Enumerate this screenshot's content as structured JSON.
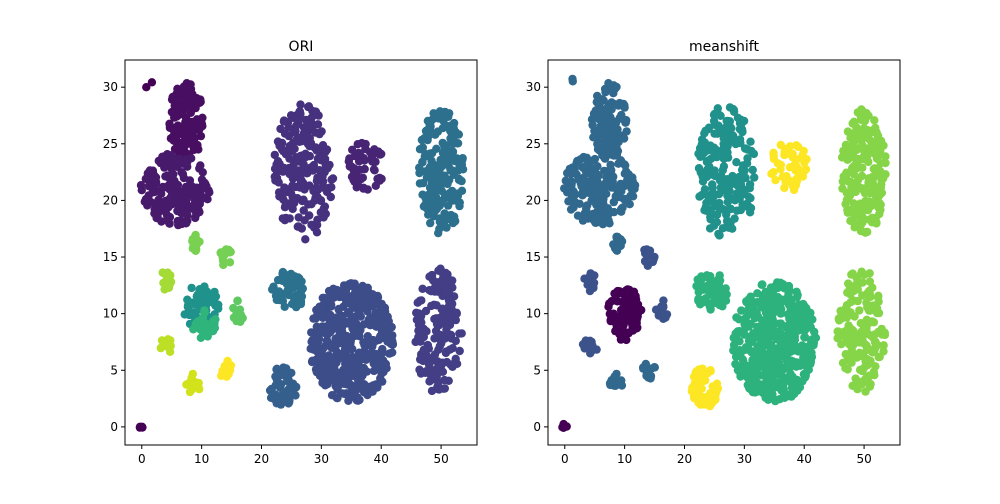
{
  "chart_data": [
    {
      "type": "scatter",
      "title": "ORI",
      "xlabel": "",
      "ylabel": "",
      "xlim": [
        -2.8,
        56
      ],
      "ylim": [
        -1.6,
        32.4
      ],
      "xticks": [
        0,
        10,
        20,
        30,
        40,
        50
      ],
      "yticks": [
        0,
        5,
        10,
        15,
        20,
        25,
        30
      ],
      "grid": false,
      "legend": "none",
      "clusters": [
        {
          "color": "#440154",
          "cx": 0,
          "cy": 0,
          "rx": 0.4,
          "ry": 0.3,
          "n": 4
        },
        {
          "color": "#440154",
          "cx": 1.2,
          "cy": 30.3,
          "rx": 0.6,
          "ry": 0.6,
          "n": 2
        },
        {
          "color": "#470e61",
          "cx": 7.5,
          "cy": 27,
          "rx": 3,
          "ry": 3.5,
          "n": 120
        },
        {
          "color": "#481a6c",
          "cx": 5.8,
          "cy": 21,
          "rx": 6,
          "ry": 3.2,
          "n": 180
        },
        {
          "color": "#482475",
          "cx": 37.5,
          "cy": 23,
          "rx": 3.2,
          "ry": 2.2,
          "n": 50
        },
        {
          "color": "#46317e",
          "cx": 27,
          "cy": 22.5,
          "rx": 5,
          "ry": 6,
          "n": 200
        },
        {
          "color": "#433e85",
          "cx": 49.5,
          "cy": 8.5,
          "rx": 4,
          "ry": 5.5,
          "n": 160
        },
        {
          "color": "#3d4d8a",
          "cx": 35,
          "cy": 7.5,
          "rx": 7,
          "ry": 5.3,
          "n": 450
        },
        {
          "color": "#355f8d",
          "cx": 23.5,
          "cy": 3.5,
          "rx": 2.4,
          "ry": 1.8,
          "n": 55
        },
        {
          "color": "#2c728e",
          "cx": 24.5,
          "cy": 12,
          "rx": 2.8,
          "ry": 1.8,
          "n": 55
        },
        {
          "color": "#2d708e",
          "cx": 50,
          "cy": 22.5,
          "rx": 3.8,
          "ry": 5.6,
          "n": 200
        },
        {
          "color": "#20928c",
          "cx": 10,
          "cy": 10.5,
          "rx": 3,
          "ry": 2.2,
          "n": 70
        },
        {
          "color": "#2fb47c",
          "cx": 10.5,
          "cy": 9,
          "rx": 2,
          "ry": 1.3,
          "n": 30
        },
        {
          "color": "#5ec962",
          "cx": 16.2,
          "cy": 10.2,
          "rx": 1,
          "ry": 1,
          "n": 14
        },
        {
          "color": "#7ad151",
          "cx": 8.8,
          "cy": 16.4,
          "rx": 1,
          "ry": 0.9,
          "n": 14
        },
        {
          "color": "#75d054",
          "cx": 14,
          "cy": 15,
          "rx": 1,
          "ry": 0.9,
          "n": 14
        },
        {
          "color": "#a5db36",
          "cx": 4.2,
          "cy": 13,
          "rx": 1,
          "ry": 1,
          "n": 12
        },
        {
          "color": "#bddf26",
          "cx": 4.2,
          "cy": 7.1,
          "rx": 1.2,
          "ry": 0.8,
          "n": 14
        },
        {
          "color": "#d2e21b",
          "cx": 8.6,
          "cy": 3.8,
          "rx": 1.2,
          "ry": 0.9,
          "n": 14
        },
        {
          "color": "#fde725",
          "cx": 14,
          "cy": 5,
          "rx": 1.1,
          "ry": 1,
          "n": 14
        }
      ]
    },
    {
      "type": "scatter",
      "title": "meanshift",
      "xlabel": "",
      "ylabel": "",
      "xlim": [
        -2.8,
        56
      ],
      "ylim": [
        -1.6,
        32.4
      ],
      "xticks": [
        0,
        10,
        20,
        30,
        40,
        50
      ],
      "yticks": [
        0,
        5,
        10,
        15,
        20,
        25,
        30
      ],
      "grid": false,
      "legend": "none",
      "clusters": [
        {
          "color": "#440154",
          "cx": 0,
          "cy": 0,
          "rx": 0.4,
          "ry": 0.3,
          "n": 4
        },
        {
          "color": "#31688e",
          "cx": 1.2,
          "cy": 30.3,
          "rx": 0.6,
          "ry": 0.6,
          "n": 2
        },
        {
          "color": "#31688e",
          "cx": 7.5,
          "cy": 27,
          "rx": 3,
          "ry": 3.5,
          "n": 120
        },
        {
          "color": "#31688e",
          "cx": 5.8,
          "cy": 21,
          "rx": 6,
          "ry": 3.2,
          "n": 180
        },
        {
          "color": "#31688e",
          "cx": 8.8,
          "cy": 16.4,
          "rx": 1,
          "ry": 0.9,
          "n": 14
        },
        {
          "color": "#fde725",
          "cx": 37.5,
          "cy": 23,
          "rx": 3.2,
          "ry": 2.2,
          "n": 50
        },
        {
          "color": "#21918c",
          "cx": 27,
          "cy": 22.5,
          "rx": 5,
          "ry": 6,
          "n": 200
        },
        {
          "color": "#86d549",
          "cx": 49.5,
          "cy": 8.5,
          "rx": 4,
          "ry": 5.5,
          "n": 160
        },
        {
          "color": "#86d549",
          "cx": 50,
          "cy": 22.5,
          "rx": 3.8,
          "ry": 5.6,
          "n": 200
        },
        {
          "color": "#2db27d",
          "cx": 35,
          "cy": 7.5,
          "rx": 7,
          "ry": 5.3,
          "n": 450
        },
        {
          "color": "#fde725",
          "cx": 23.5,
          "cy": 3.5,
          "rx": 2.4,
          "ry": 1.8,
          "n": 55
        },
        {
          "color": "#2db27d",
          "cx": 24.5,
          "cy": 12,
          "rx": 2.8,
          "ry": 1.8,
          "n": 55
        },
        {
          "color": "#440154",
          "cx": 10,
          "cy": 10,
          "rx": 2.8,
          "ry": 2.4,
          "n": 100
        },
        {
          "color": "#3b528b",
          "cx": 16.2,
          "cy": 10.2,
          "rx": 1,
          "ry": 1,
          "n": 14
        },
        {
          "color": "#3b528b",
          "cx": 14,
          "cy": 15,
          "rx": 1,
          "ry": 0.9,
          "n": 14
        },
        {
          "color": "#3b528b",
          "cx": 4.2,
          "cy": 13,
          "rx": 1,
          "ry": 1,
          "n": 12
        },
        {
          "color": "#3b528b",
          "cx": 4.2,
          "cy": 7.1,
          "rx": 1.2,
          "ry": 0.8,
          "n": 14
        },
        {
          "color": "#31688e",
          "cx": 8.6,
          "cy": 3.8,
          "rx": 1.2,
          "ry": 0.9,
          "n": 14
        },
        {
          "color": "#31688e",
          "cx": 14,
          "cy": 5,
          "rx": 1.1,
          "ry": 1,
          "n": 14
        }
      ]
    }
  ]
}
